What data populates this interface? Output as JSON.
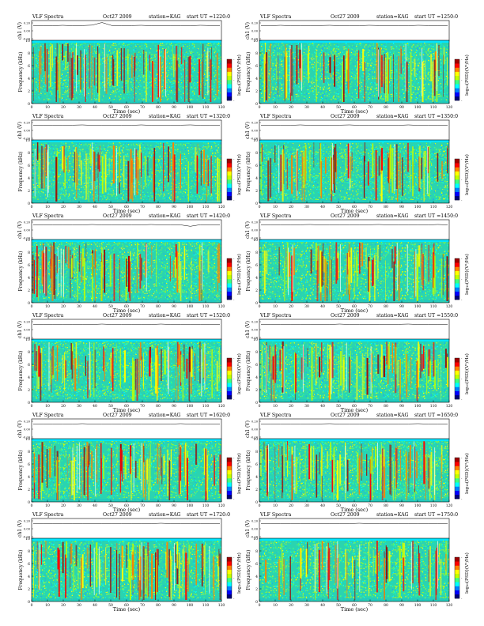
{
  "page": {
    "colorbar_label": "log₁₀(PSD)(V²/Hz)",
    "colorbar_colors": [
      "#00007a",
      "#0000ff",
      "#0080ff",
      "#00ffff",
      "#40ff80",
      "#c0ff00",
      "#ffff00",
      "#ff8000",
      "#ff0000",
      "#a00000"
    ]
  },
  "chart_data": [
    {
      "type": "heatmap",
      "header_title": "VLF Spectra",
      "header_date": "Oct27 2009",
      "header_station": "station=KAG",
      "header_start": "start UT =1220:0",
      "ch_label": "ch1 (V)",
      "ylabel": "Frequency (kHz)",
      "xlabel": "Time (sec)",
      "x_ticks": [
        "0",
        "10",
        "20",
        "30",
        "40",
        "50",
        "60",
        "70",
        "80",
        "90",
        "100",
        "110",
        "120"
      ],
      "y_ticks": [
        "0",
        "2",
        "4",
        "6",
        "8",
        "10"
      ],
      "ch_ticks": [
        "0.20",
        "0.00",
        "-0.20"
      ],
      "xlim": [
        0,
        120
      ],
      "ylim": [
        0,
        10
      ],
      "cbar_ticks": [
        "-",
        "-",
        "-"
      ],
      "ch_trace": [
        0.02,
        0.03,
        0.02,
        0.04,
        0.02,
        0.03,
        0.05,
        0.18,
        0.03,
        0.02,
        0.03,
        0.04,
        0.02,
        0.03,
        0.02,
        0.03,
        0.02,
        0.04,
        0.03,
        0.02
      ]
    },
    {
      "type": "heatmap",
      "header_title": "VLF Spectra",
      "header_date": "Oct27 2009",
      "header_station": "station=KAG",
      "header_start": "start UT =1250:0",
      "ch_label": "ch1 (V)",
      "ylabel": "Frequency (kHz)",
      "xlabel": "Time (sec)",
      "x_ticks": [
        "0",
        "10",
        "20",
        "30",
        "40",
        "50",
        "60",
        "70",
        "80",
        "90",
        "100",
        "110",
        "120"
      ],
      "y_ticks": [
        "0",
        "2",
        "4",
        "6",
        "8",
        "10"
      ],
      "ch_ticks": [
        "0.20",
        "0.00",
        "-0.20"
      ],
      "xlim": [
        0,
        120
      ],
      "ylim": [
        0,
        10
      ],
      "cbar_ticks": [
        "-",
        "-",
        "-"
      ],
      "ch_trace": [
        0.03,
        0.02,
        0.04,
        0.02,
        0.03,
        0.02,
        0.03,
        0.04,
        0.02,
        0.03,
        0.02,
        0.04,
        0.03,
        0.02,
        0.03,
        0.02,
        0.04,
        0.03,
        0.02,
        0.03
      ]
    },
    {
      "type": "heatmap",
      "header_title": "VLF Spectra",
      "header_date": "Oct27 2009",
      "header_station": "station=KAG",
      "header_start": "start UT =1320:0",
      "ch_label": "ch1 (V)",
      "ylabel": "Frequency (kHz)",
      "xlabel": "Time (sec)",
      "x_ticks": [
        "0",
        "10",
        "20",
        "30",
        "40",
        "50",
        "60",
        "70",
        "80",
        "90",
        "100",
        "110",
        "120"
      ],
      "y_ticks": [
        "0",
        "2",
        "4",
        "6",
        "8",
        "10"
      ],
      "ch_ticks": [
        "0.20",
        "0.00",
        "-0.20"
      ],
      "xlim": [
        0,
        120
      ],
      "ylim": [
        0,
        10
      ],
      "cbar_ticks": [
        "-",
        "-",
        "-"
      ],
      "ch_trace": [
        0.02,
        0.03,
        0.02,
        0.02,
        0.03,
        0.04,
        0.02,
        0.03,
        0.02,
        0.03,
        0.02,
        0.04,
        0.02,
        0.03,
        0.02,
        0.03,
        0.04,
        0.02,
        0.03,
        0.02
      ]
    },
    {
      "type": "heatmap",
      "header_title": "VLF Spectra",
      "header_date": "Oct27 2009",
      "header_station": "station=KAG",
      "header_start": "start UT =1350:0",
      "ch_label": "ch1 (V)",
      "ylabel": "Frequency (kHz)",
      "xlabel": "Time (sec)",
      "x_ticks": [
        "0",
        "10",
        "20",
        "30",
        "40",
        "50",
        "60",
        "70",
        "80",
        "90",
        "100",
        "110",
        "120"
      ],
      "y_ticks": [
        "0",
        "2",
        "4",
        "6",
        "8",
        "10"
      ],
      "ch_ticks": [
        "0.20",
        "0.00",
        "-0.20"
      ],
      "xlim": [
        0,
        120
      ],
      "ylim": [
        0,
        10
      ],
      "cbar_ticks": [
        "-",
        "-",
        "-"
      ],
      "ch_trace": [
        0.03,
        0.02,
        0.03,
        0.02,
        0.04,
        0.02,
        0.03,
        0.02,
        0.03,
        0.04,
        0.02,
        0.03,
        0.02,
        0.03,
        0.02,
        0.04,
        0.02,
        0.03,
        0.02,
        0.03
      ]
    },
    {
      "type": "heatmap",
      "header_title": "VLF Spectra",
      "header_date": "Oct27 2009",
      "header_station": "station=KAG",
      "header_start": "start UT =1420:0",
      "ch_label": "ch1 (V)",
      "ylabel": "Frequency (kHz)",
      "xlabel": "Time (sec)",
      "x_ticks": [
        "0",
        "10",
        "20",
        "30",
        "40",
        "50",
        "60",
        "70",
        "80",
        "90",
        "100",
        "110",
        "120"
      ],
      "y_ticks": [
        "0",
        "2",
        "4",
        "6",
        "8",
        "10"
      ],
      "ch_ticks": [
        "0.20",
        "0.00",
        "-0.20"
      ],
      "xlim": [
        0,
        120
      ],
      "ylim": [
        0,
        10
      ],
      "cbar_ticks": [
        "-",
        "-",
        "-"
      ],
      "ch_trace": [
        0.02,
        0.02,
        0.03,
        0.02,
        0.03,
        0.02,
        0.04,
        0.02,
        0.03,
        0.02,
        0.03,
        0.02,
        0.04,
        0.02,
        0.03,
        0.02,
        -0.05,
        0.03,
        0.02,
        0.03
      ]
    },
    {
      "type": "heatmap",
      "header_title": "VLF Spectra",
      "header_date": "Oct27 2009",
      "header_station": "station=KAG",
      "header_start": "start UT =1450:0",
      "ch_label": "ch1 (V)",
      "ylabel": "Frequency (kHz)",
      "xlabel": "Time (sec)",
      "x_ticks": [
        "0",
        "10",
        "20",
        "30",
        "40",
        "50",
        "60",
        "70",
        "80",
        "90",
        "100",
        "110",
        "120"
      ],
      "y_ticks": [
        "0",
        "2",
        "4",
        "6",
        "8",
        "10"
      ],
      "ch_ticks": [
        "0.20",
        "0.00",
        "-0.20"
      ],
      "xlim": [
        0,
        120
      ],
      "ylim": [
        0,
        10
      ],
      "cbar_ticks": [
        "-",
        "-",
        "-"
      ],
      "ch_trace": [
        0.03,
        0.02,
        0.03,
        0.02,
        0.03,
        0.04,
        0.02,
        0.03,
        0.02,
        0.03,
        0.02,
        0.03,
        0.04,
        0.02,
        0.03,
        0.02,
        0.03,
        0.02,
        0.04,
        0.02
      ]
    },
    {
      "type": "heatmap",
      "header_title": "VLF Spectra",
      "header_date": "Oct27 2009",
      "header_station": "station=KAG",
      "header_start": "start UT =1520:0",
      "ch_label": "ch1 (V)",
      "ylabel": "Frequency (kHz)",
      "xlabel": "Time (sec)",
      "x_ticks": [
        "0",
        "10",
        "20",
        "30",
        "40",
        "50",
        "60",
        "70",
        "80",
        "90",
        "100",
        "110",
        "120"
      ],
      "y_ticks": [
        "0",
        "2",
        "4",
        "6",
        "8",
        "10"
      ],
      "ch_ticks": [
        "0.20",
        "0.00",
        "-0.20"
      ],
      "xlim": [
        0,
        120
      ],
      "ylim": [
        0,
        10
      ],
      "cbar_ticks": [
        "-",
        "-",
        "-"
      ],
      "ch_trace": [
        0.02,
        0.03,
        0.02,
        0.03,
        0.02,
        0.03,
        0.02,
        0.04,
        0.02,
        0.03,
        0.02,
        0.03,
        0.02,
        0.04,
        0.02,
        0.03,
        0.02,
        0.03,
        0.02,
        0.03
      ]
    },
    {
      "type": "heatmap",
      "header_title": "VLF Spectra",
      "header_date": "Oct27 2009",
      "header_station": "station=KAG",
      "header_start": "start UT =1550:0",
      "ch_label": "ch1 (V)",
      "ylabel": "Frequency (kHz)",
      "xlabel": "Time (sec)",
      "x_ticks": [
        "0",
        "10",
        "20",
        "30",
        "40",
        "50",
        "60",
        "70",
        "80",
        "90",
        "100",
        "110",
        "120"
      ],
      "y_ticks": [
        "0",
        "2",
        "4",
        "6",
        "8",
        "10"
      ],
      "ch_ticks": [
        "0.20",
        "0.00",
        "-0.20"
      ],
      "xlim": [
        0,
        120
      ],
      "ylim": [
        0,
        10
      ],
      "cbar_ticks": [
        "-",
        "-",
        "-"
      ],
      "ch_trace": [
        0.03,
        0.02,
        0.03,
        0.02,
        0.03,
        0.02,
        0.03,
        0.02,
        0.04,
        0.02,
        0.03,
        0.02,
        0.03,
        0.02,
        0.03,
        0.04,
        0.02,
        0.03,
        0.02,
        0.03
      ]
    },
    {
      "type": "heatmap",
      "header_title": "VLF Spectra",
      "header_date": "Oct27 2009",
      "header_station": "station=KAG",
      "header_start": "start UT =1620:0",
      "ch_label": "ch1 (V)",
      "ylabel": "Frequency (kHz)",
      "xlabel": "Time (sec)",
      "x_ticks": [
        "0",
        "10",
        "20",
        "30",
        "40",
        "50",
        "60",
        "70",
        "80",
        "90",
        "100",
        "110",
        "120"
      ],
      "y_ticks": [
        "0",
        "2",
        "4",
        "6",
        "8",
        "10"
      ],
      "ch_ticks": [
        "0.20",
        "0.00",
        "-0.20"
      ],
      "xlim": [
        0,
        120
      ],
      "ylim": [
        0,
        10
      ],
      "cbar_ticks": [
        "-",
        "-",
        "-"
      ],
      "ch_trace": [
        0.02,
        0.03,
        0.02,
        0.03,
        0.02,
        0.04,
        0.02,
        0.03,
        0.02,
        0.03,
        0.02,
        0.03,
        0.02,
        0.03,
        0.02,
        0.04,
        0.02,
        0.03,
        0.02,
        0.03
      ]
    },
    {
      "type": "heatmap",
      "header_title": "VLF Spectra",
      "header_date": "Oct27 2009",
      "header_station": "station=KAG",
      "header_start": "start UT =1650:0",
      "ch_label": "ch1 (V)",
      "ylabel": "Frequency (kHz)",
      "xlabel": "Time (sec)",
      "x_ticks": [
        "0",
        "10",
        "20",
        "30",
        "40",
        "50",
        "60",
        "70",
        "80",
        "90",
        "100",
        "110",
        "120"
      ],
      "y_ticks": [
        "0",
        "2",
        "4",
        "6",
        "8",
        "10"
      ],
      "ch_ticks": [
        "0.20",
        "0.00",
        "-0.20"
      ],
      "xlim": [
        0,
        120
      ],
      "ylim": [
        0,
        10
      ],
      "cbar_ticks": [
        "-",
        "-",
        "-"
      ],
      "ch_trace": [
        0.03,
        0.02,
        0.03,
        0.02,
        0.03,
        0.02,
        0.03,
        0.04,
        0.02,
        0.03,
        0.02,
        0.03,
        0.02,
        0.03,
        0.02,
        0.03,
        0.04,
        0.02,
        0.03,
        0.02
      ]
    },
    {
      "type": "heatmap",
      "header_title": "VLF Spectra",
      "header_date": "Oct27 2009",
      "header_station": "station=KAG",
      "header_start": "start UT =1720:0",
      "ch_label": "ch1 (V)",
      "ylabel": "Frequency (kHz)",
      "xlabel": "Time (sec)",
      "x_ticks": [
        "0",
        "10",
        "20",
        "30",
        "40",
        "50",
        "60",
        "70",
        "80",
        "90",
        "100",
        "110",
        "120"
      ],
      "y_ticks": [
        "0",
        "2",
        "4",
        "6",
        "8",
        "10"
      ],
      "ch_ticks": [
        "0.20",
        "0.00",
        "-0.20"
      ],
      "xlim": [
        0,
        120
      ],
      "ylim": [
        0,
        10
      ],
      "cbar_ticks": [
        "-",
        "-",
        "-"
      ],
      "ch_trace": [
        0.02,
        0.03,
        0.02,
        0.03,
        0.02,
        0.03,
        0.02,
        0.03,
        0.02,
        0.03,
        0.02,
        0.03,
        0.02,
        0.04,
        0.02,
        0.03,
        0.02,
        0.03,
        0.02,
        0.03
      ]
    },
    {
      "type": "heatmap",
      "header_title": "VLF Spectra",
      "header_date": "Oct27 2009",
      "header_station": "station=KAG",
      "header_start": "start UT =1750:0",
      "ch_label": "ch1 (V)",
      "ylabel": "Frequency (kHz)",
      "xlabel": "Time (sec)",
      "x_ticks": [
        "0",
        "10",
        "20",
        "30",
        "40",
        "50",
        "60",
        "70",
        "80",
        "90",
        "100",
        "110",
        "120"
      ],
      "y_ticks": [
        "0",
        "2",
        "4",
        "6",
        "8",
        "10"
      ],
      "ch_ticks": [
        "0.20",
        "0.00",
        "-0.20"
      ],
      "xlim": [
        0,
        120
      ],
      "ylim": [
        0,
        10
      ],
      "cbar_ticks": [
        "-",
        "-",
        "-"
      ],
      "ch_trace": [
        0.03,
        0.02,
        0.03,
        0.02,
        0.03,
        0.02,
        0.03,
        0.02,
        0.03,
        0.02,
        0.04,
        0.02,
        0.03,
        0.02,
        0.03,
        0.02,
        0.03,
        0.02,
        0.03,
        0.02
      ]
    }
  ]
}
